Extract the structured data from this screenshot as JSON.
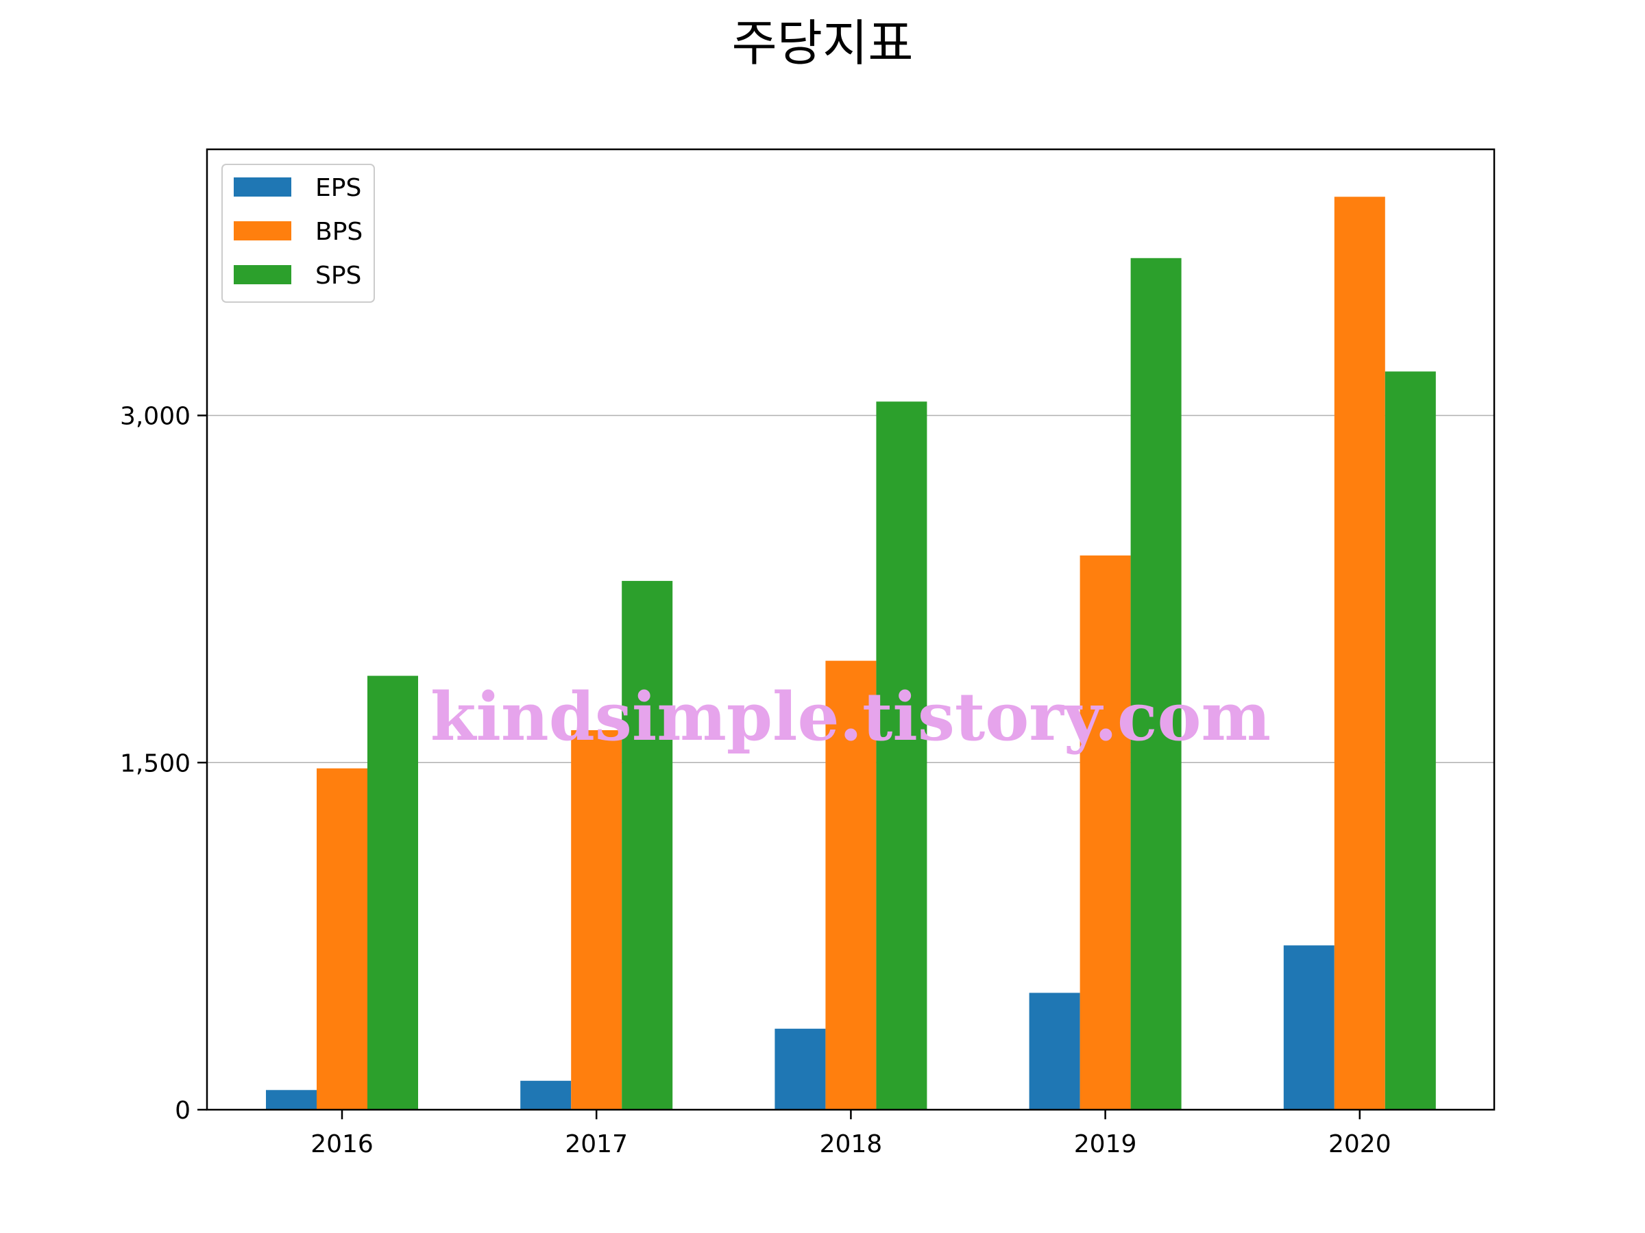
{
  "chart_data": {
    "type": "bar",
    "title": "주당지표",
    "xlabel": "",
    "ylabel": "",
    "categories": [
      "2016",
      "2017",
      "2018",
      "2019",
      "2020"
    ],
    "series": [
      {
        "name": "EPS",
        "color": "#1f77b4",
        "values": [
          85,
          125,
          350,
          505,
          710
        ]
      },
      {
        "name": "BPS",
        "color": "#ff7f0e",
        "values": [
          1475,
          1640,
          1940,
          2395,
          3945
        ]
      },
      {
        "name": "SPS",
        "color": "#2ca02c",
        "values": [
          1875,
          2285,
          3060,
          3680,
          3190
        ]
      }
    ],
    "ylim": [
      0,
      4150
    ],
    "yticks": [
      0,
      1500,
      3000
    ],
    "ytick_labels": [
      "0",
      "1,500",
      "3,000"
    ],
    "grid": "horizontal",
    "legend_position": "top-left"
  },
  "watermark": "kindsimple.tistory.com"
}
